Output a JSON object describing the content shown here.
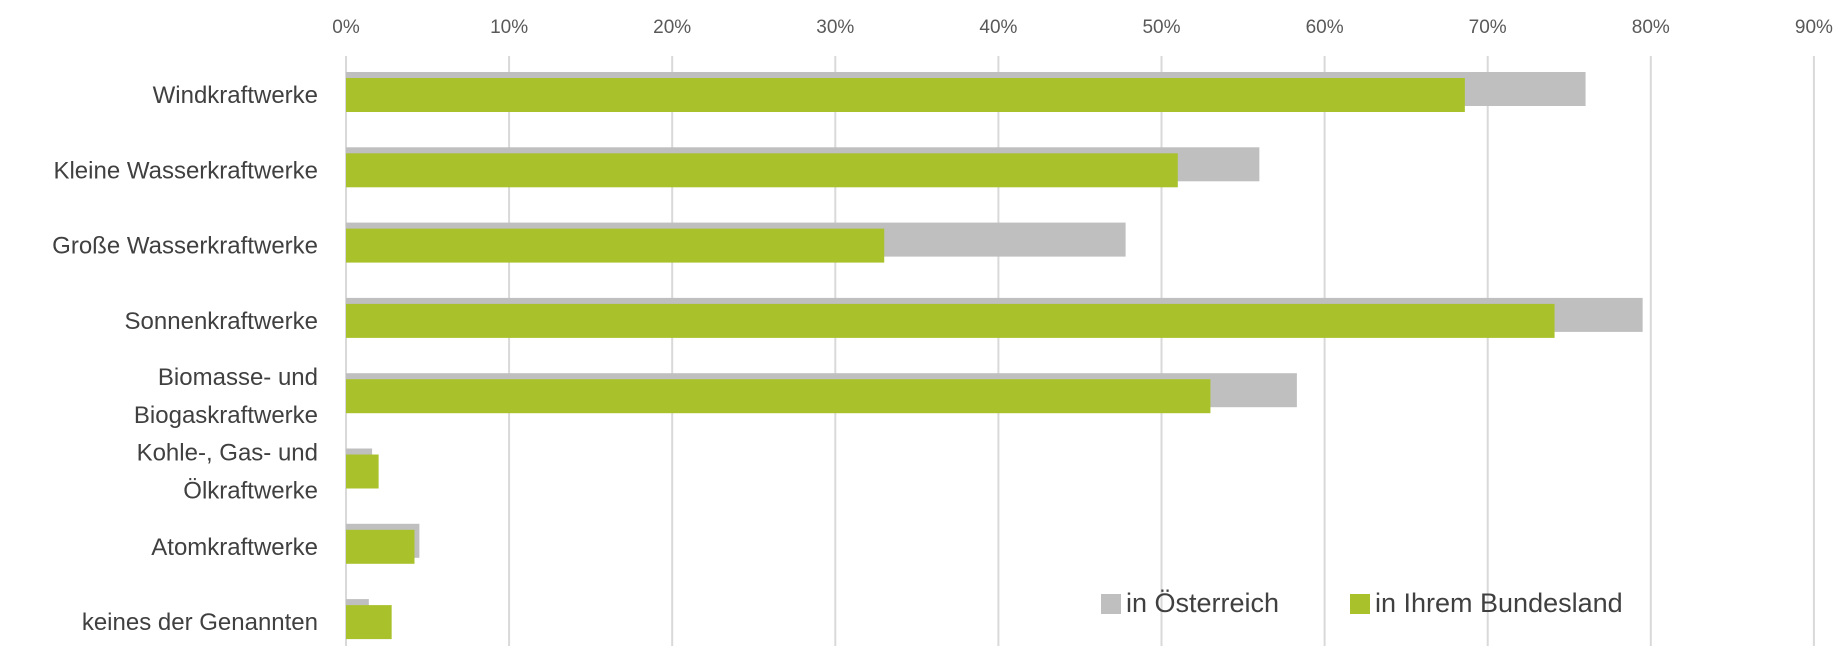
{
  "chart_data": {
    "type": "bar",
    "orientation": "horizontal",
    "categories": [
      [
        "Windkraftwerke"
      ],
      [
        "Kleine Wasserkraftwerke"
      ],
      [
        "Große Wasserkraftwerke"
      ],
      [
        "Sonnenkraftwerke"
      ],
      [
        "Biomasse- und",
        "Biogaskraftwerke"
      ],
      [
        "Kohle-, Gas- und",
        "Ölkraftwerke"
      ],
      [
        "Atomkraftwerke"
      ],
      [
        "keines der Genannten"
      ]
    ],
    "series": [
      {
        "name": "in Österreich",
        "color": "#bfbfbf",
        "values": [
          76,
          56,
          47.8,
          79.5,
          58.3,
          1.6,
          4.5,
          1.4
        ]
      },
      {
        "name": "in Ihrem Bundesland",
        "color": "#a9c22c",
        "values": [
          68.6,
          51,
          33,
          74.1,
          53,
          2,
          4.2,
          2.8
        ]
      }
    ],
    "xlim": [
      0,
      90
    ],
    "x_ticks": [
      "0%",
      "10%",
      "20%",
      "30%",
      "40%",
      "50%",
      "60%",
      "70%",
      "80%",
      "90%"
    ],
    "x_axis_position": "top",
    "grid": "vertical",
    "legend_position": "bottom-right"
  }
}
